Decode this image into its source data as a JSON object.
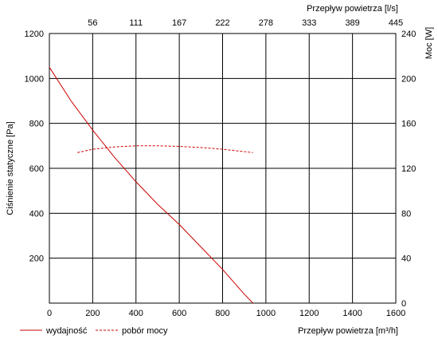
{
  "chart_data": {
    "type": "line",
    "x_axis": {
      "label": "Przepływ powietrza [m³/h]",
      "range": [
        0,
        1600
      ],
      "ticks": [
        0,
        200,
        400,
        600,
        800,
        1000,
        1200,
        1400,
        1600
      ]
    },
    "x2_axis": {
      "label": "Przepływ powietrza [l/s]",
      "ticks": [
        "56",
        "111",
        "167",
        "222",
        "278",
        "333",
        "389",
        "445"
      ]
    },
    "y_axis": {
      "label": "Ciśnienie statyczne [Pa]",
      "range": [
        0,
        1200
      ],
      "ticks": [
        200,
        400,
        600,
        800,
        1000,
        1200
      ]
    },
    "y2_axis": {
      "label": "Moc [W]",
      "range": [
        0,
        240
      ],
      "ticks": [
        0,
        40,
        80,
        120,
        160,
        200,
        240
      ]
    },
    "grid": true,
    "legend": {
      "placement": "bottom-left"
    },
    "series": [
      {
        "name": "wydajność",
        "axis": "left",
        "style": "solid",
        "color": "#cc0000",
        "x": [
          0,
          100,
          200,
          300,
          400,
          500,
          600,
          700,
          800,
          900,
          940
        ],
        "y": [
          1050,
          900,
          770,
          650,
          540,
          440,
          350,
          250,
          150,
          40,
          0
        ]
      },
      {
        "name": "pobór mocy",
        "axis": "right",
        "style": "dashed",
        "color": "#cc0000",
        "x": [
          130,
          200,
          300,
          400,
          500,
          600,
          700,
          800,
          940
        ],
        "y": [
          134,
          137,
          139,
          140,
          140,
          139.5,
          138.5,
          137,
          134
        ]
      }
    ]
  }
}
